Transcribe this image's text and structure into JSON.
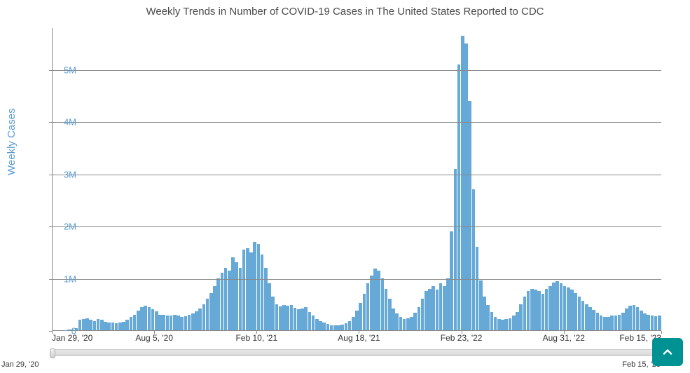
{
  "chart": {
    "type": "bar",
    "title": "Weekly Trends in Number of COVID-19 Cases in The United States Reported to CDC",
    "title_fontsize": 15,
    "title_color": "#4a4a4a",
    "y_axis": {
      "label": "Weekly Cases",
      "label_color": "#5a9bd4",
      "label_fontsize": 15,
      "ticks": [
        {
          "value": 0,
          "label": "0"
        },
        {
          "value": 1000000,
          "label": "1M"
        },
        {
          "value": 2000000,
          "label": "2M"
        },
        {
          "value": 3000000,
          "label": "3M"
        },
        {
          "value": 4000000,
          "label": "4M"
        },
        {
          "value": 5000000,
          "label": "5M"
        }
      ],
      "min": 0,
      "max": 5800000,
      "tick_color": "#5a9bd4",
      "grid_color": "#888888"
    },
    "x_axis": {
      "ticks": [
        {
          "pos": 0.0,
          "label": "Jan 29, '20"
        },
        {
          "pos": 0.168,
          "label": "Aug 5, '20"
        },
        {
          "pos": 0.336,
          "label": "Feb 10, '21"
        },
        {
          "pos": 0.504,
          "label": "Aug 18, '21"
        },
        {
          "pos": 0.672,
          "label": "Feb 23, '22"
        },
        {
          "pos": 0.84,
          "label": "Aug 31, '22"
        },
        {
          "pos": 1.0,
          "label": "Feb 15, '23"
        }
      ],
      "tick_color": "#333333"
    },
    "bar_color": "#66a9d6",
    "background_color": "#ffffff",
    "axis_color": "#888888",
    "values": [
      0,
      0,
      0,
      5000,
      10000,
      20000,
      40000,
      200000,
      220000,
      230000,
      200000,
      180000,
      210000,
      200000,
      160000,
      150000,
      145000,
      140000,
      150000,
      155000,
      200000,
      250000,
      300000,
      380000,
      450000,
      470000,
      440000,
      400000,
      370000,
      300000,
      290000,
      280000,
      285000,
      295000,
      280000,
      260000,
      265000,
      300000,
      320000,
      360000,
      420000,
      500000,
      600000,
      720000,
      850000,
      1000000,
      1100000,
      1200000,
      1150000,
      1400000,
      1300000,
      1200000,
      1550000,
      1580000,
      1500000,
      1700000,
      1650000,
      1450000,
      1200000,
      900000,
      650000,
      500000,
      460000,
      490000,
      470000,
      480000,
      430000,
      400000,
      420000,
      440000,
      350000,
      280000,
      220000,
      180000,
      150000,
      120000,
      100000,
      90000,
      95000,
      110000,
      140000,
      180000,
      250000,
      380000,
      520000,
      700000,
      900000,
      1050000,
      1180000,
      1150000,
      1000000,
      800000,
      600000,
      420000,
      320000,
      260000,
      220000,
      230000,
      260000,
      330000,
      450000,
      600000,
      750000,
      800000,
      850000,
      780000,
      900000,
      850000,
      1000000,
      1900000,
      3100000,
      5100000,
      5650000,
      5500000,
      4400000,
      2700000,
      1600000,
      950000,
      650000,
      480000,
      350000,
      260000,
      220000,
      200000,
      210000,
      230000,
      280000,
      350000,
      500000,
      650000,
      750000,
      800000,
      780000,
      750000,
      700000,
      800000,
      850000,
      920000,
      940000,
      900000,
      850000,
      820000,
      780000,
      720000,
      650000,
      570000,
      500000,
      440000,
      390000,
      330000,
      280000,
      260000,
      260000,
      280000,
      280000,
      300000,
      340000,
      420000,
      470000,
      480000,
      440000,
      380000,
      320000,
      290000,
      280000,
      270000,
      280000
    ]
  },
  "slider": {
    "start_label": "Jan 29, '20",
    "end_label": "Feb 15, '23"
  },
  "scroll_button": {
    "bg_color": "#009193",
    "icon_color": "#ffffff"
  }
}
